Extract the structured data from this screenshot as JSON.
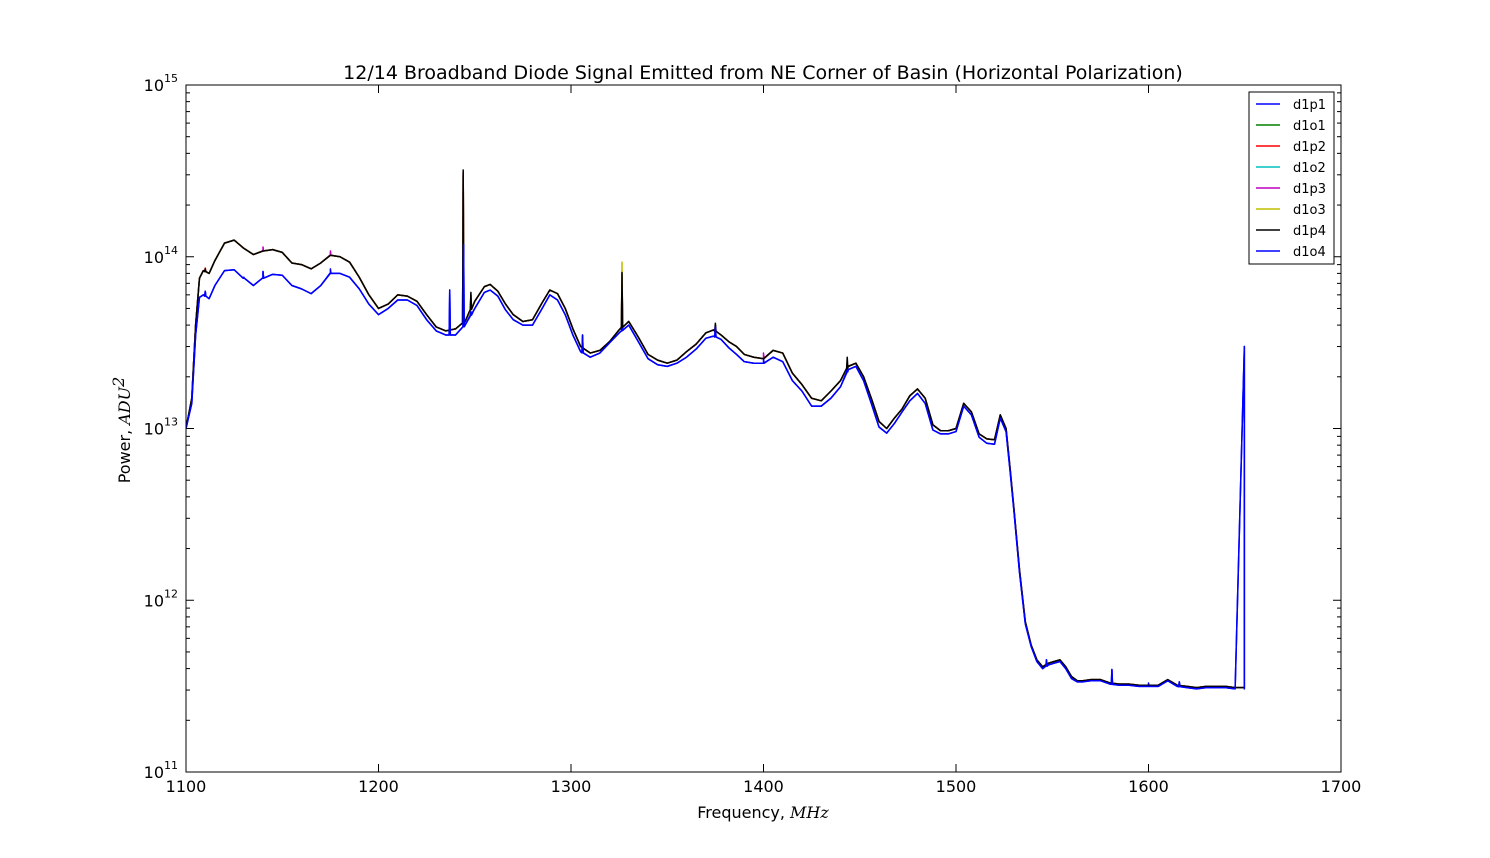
{
  "chart_data": {
    "type": "line",
    "title": "12/14 Broadband Diode Signal Emitted from NE Corner of Basin (Horizontal Polarization)",
    "xlabel": "Frequency, ",
    "xlabel_math": "MHz",
    "ylabel": "Power, ",
    "ylabel_math": "ADU",
    "ylabel_math_exponent": "2",
    "xlim": [
      1100,
      1700
    ],
    "ylim": [
      100000000000.0,
      1000000000000000.0
    ],
    "yscale": "log",
    "x_ticks": [
      1100,
      1200,
      1300,
      1400,
      1500,
      1600,
      1700
    ],
    "x_tick_labels": [
      "1100",
      "1200",
      "1300",
      "1400",
      "1500",
      "1600",
      "1700"
    ],
    "y_ticks": [
      100000000000.0,
      1000000000000.0,
      10000000000000.0,
      100000000000000.0,
      1000000000000000.0
    ],
    "y_tick_labels": [
      {
        "base": "10",
        "exp": "11"
      },
      {
        "base": "10",
        "exp": "12"
      },
      {
        "base": "10",
        "exp": "13"
      },
      {
        "base": "10",
        "exp": "14"
      },
      {
        "base": "10",
        "exp": "15"
      }
    ],
    "grid": false,
    "legend_position": "upper-right",
    "colors": {
      "d1p1": "#0000ff",
      "d1o1": "#008000",
      "d1p2": "#ff0000",
      "d1o2": "#00bfbf",
      "d1p3": "#bf00bf",
      "d1o3": "#bfbf00",
      "d1p4": "#000000",
      "d1o4": "#0000ff"
    },
    "upper_envelope": {
      "x": [
        1100,
        1103,
        1105,
        1107,
        1109,
        1112,
        1115,
        1120,
        1125,
        1130,
        1135,
        1140,
        1145,
        1150,
        1155,
        1160,
        1165,
        1170,
        1175,
        1180,
        1185,
        1190,
        1195,
        1200,
        1205,
        1210,
        1215,
        1220,
        1225,
        1230,
        1235,
        1240,
        1245,
        1250,
        1255,
        1258,
        1262,
        1266,
        1270,
        1275,
        1280,
        1285,
        1289,
        1293,
        1297,
        1301,
        1305,
        1310,
        1315,
        1320,
        1325,
        1330,
        1335,
        1340,
        1345,
        1350,
        1355,
        1360,
        1365,
        1370,
        1374,
        1378,
        1382,
        1386,
        1390,
        1395,
        1400,
        1405,
        1410,
        1415,
        1420,
        1425,
        1430,
        1435,
        1440,
        1444,
        1448,
        1452,
        1456,
        1460,
        1464,
        1468,
        1472,
        1476,
        1480,
        1484,
        1488,
        1492,
        1496,
        1500,
        1504,
        1508,
        1512,
        1516,
        1520,
        1523,
        1526,
        1528,
        1530,
        1533,
        1536,
        1539,
        1542,
        1545,
        1548,
        1551,
        1554,
        1557,
        1560,
        1563,
        1566,
        1570,
        1575,
        1580,
        1585,
        1590,
        1595,
        1600,
        1605,
        1610,
        1615,
        1620,
        1625,
        1630,
        1635,
        1640,
        1645,
        1649.8
      ],
      "y": [
        10000000000000.0,
        15000000000000.0,
        40000000000000.0,
        75000000000000.0,
        83000000000000.0,
        80000000000000.0,
        95000000000000.0,
        120000000000000.0,
        125000000000000.0,
        112000000000000.0,
        103000000000000.0,
        108000000000000.0,
        110000000000000.0,
        106000000000000.0,
        92000000000000.0,
        90000000000000.0,
        85000000000000.0,
        92000000000000.0,
        102000000000000.0,
        100000000000000.0,
        93000000000000.0,
        76000000000000.0,
        60000000000000.0,
        50000000000000.0,
        53000000000000.0,
        60000000000000.0,
        59000000000000.0,
        55000000000000.0,
        46000000000000.0,
        39000000000000.0,
        37000000000000.0,
        38000000000000.0,
        42000000000000.0,
        55000000000000.0,
        67000000000000.0,
        69000000000000.0,
        63000000000000.0,
        53000000000000.0,
        46000000000000.0,
        42000000000000.0,
        43000000000000.0,
        54000000000000.0,
        64000000000000.0,
        61000000000000.0,
        50000000000000.0,
        38000000000000.0,
        30000000000000.0,
        27500000000000.0,
        28500000000000.0,
        32000000000000.0,
        37500000000000.0,
        42000000000000.0,
        34000000000000.0,
        27000000000000.0,
        25000000000000.0,
        24000000000000.0,
        25000000000000.0,
        28000000000000.0,
        31000000000000.0,
        36000000000000.0,
        37500000000000.0,
        35000000000000.0,
        32000000000000.0,
        30000000000000.0,
        27000000000000.0,
        26000000000000.0,
        25500000000000.0,
        28500000000000.0,
        27500000000000.0,
        21000000000000.0,
        18000000000000.0,
        15000000000000.0,
        14500000000000.0,
        16500000000000.0,
        19000000000000.0,
        23000000000000.0,
        24000000000000.0,
        20000000000000.0,
        15000000000000.0,
        11000000000000.0,
        10000000000000.0,
        11500000000000.0,
        13000000000000.0,
        15500000000000.0,
        17000000000000.0,
        15000000000000.0,
        10500000000000.0,
        9700000000000.0,
        9700000000000.0,
        10000000000000.0,
        14000000000000.0,
        12500000000000.0,
        9300000000000.0,
        8700000000000.0,
        8600000000000.0,
        12000000000000.0,
        10000000000000.0,
        6000000000000.0,
        3500000000000.0,
        1500000000000.0,
        750000000000.0,
        550000000000.0,
        450000000000.0,
        410000000000.0,
        430000000000.0,
        440000000000.0,
        450000000000.0,
        410000000000.0,
        360000000000.0,
        340000000000.0,
        340000000000.0,
        345000000000.0,
        345000000000.0,
        330000000000.0,
        325000000000.0,
        325000000000.0,
        320000000000.0,
        320000000000.0,
        320000000000.0,
        345000000000.0,
        320000000000.0,
        315000000000.0,
        310000000000.0,
        315000000000.0,
        315000000000.0,
        315000000000.0,
        310000000000.0,
        310000000000.0
      ]
    },
    "lower_envelope": {
      "x": [
        1100,
        1103,
        1105,
        1107,
        1109,
        1112,
        1115,
        1120,
        1125,
        1130,
        1135,
        1140,
        1145,
        1150,
        1155,
        1160,
        1165,
        1170,
        1175,
        1180,
        1185,
        1190,
        1195,
        1200,
        1205,
        1210,
        1215,
        1220,
        1225,
        1230,
        1235,
        1240,
        1245,
        1250,
        1255,
        1258,
        1262,
        1266,
        1270,
        1275,
        1280,
        1285,
        1289,
        1293,
        1297,
        1301,
        1305,
        1310,
        1315,
        1320,
        1325,
        1330,
        1335,
        1340,
        1345,
        1350,
        1355,
        1360,
        1365,
        1370,
        1374,
        1378,
        1382,
        1386,
        1390,
        1395,
        1400,
        1405,
        1410,
        1415,
        1420,
        1425,
        1430,
        1435,
        1440,
        1444,
        1448,
        1452,
        1456,
        1460,
        1464,
        1468,
        1472,
        1476,
        1480,
        1484,
        1488,
        1492,
        1496,
        1500,
        1504,
        1508,
        1512,
        1516,
        1520,
        1523,
        1526,
        1528,
        1530,
        1533,
        1536,
        1539,
        1542,
        1545,
        1548,
        1551,
        1554,
        1557,
        1560,
        1563,
        1566,
        1570,
        1575,
        1580,
        1585,
        1590,
        1595,
        1600,
        1605,
        1610,
        1615,
        1620,
        1625,
        1630,
        1635,
        1640,
        1645,
        1649.8
      ],
      "y": [
        10000000000000.0,
        14000000000000.0,
        35000000000000.0,
        58000000000000.0,
        60000000000000.0,
        57000000000000.0,
        68000000000000.0,
        83000000000000.0,
        84000000000000.0,
        75000000000000.0,
        68000000000000.0,
        75000000000000.0,
        79000000000000.0,
        78000000000000.0,
        68000000000000.0,
        65000000000000.0,
        61000000000000.0,
        68000000000000.0,
        80000000000000.0,
        80000000000000.0,
        76000000000000.0,
        65000000000000.0,
        53000000000000.0,
        46000000000000.0,
        50000000000000.0,
        56000000000000.0,
        56000000000000.0,
        52000000000000.0,
        43000000000000.0,
        37000000000000.0,
        35000000000000.0,
        35000000000000.0,
        40000000000000.0,
        50000000000000.0,
        62000000000000.0,
        64000000000000.0,
        59000000000000.0,
        49000000000000.0,
        43000000000000.0,
        40000000000000.0,
        40000000000000.0,
        50000000000000.0,
        60000000000000.0,
        56000000000000.0,
        46000000000000.0,
        35000000000000.0,
        28000000000000.0,
        26000000000000.0,
        27500000000000.0,
        31500000000000.0,
        36000000000000.0,
        40000000000000.0,
        32000000000000.0,
        25500000000000.0,
        23500000000000.0,
        23000000000000.0,
        24000000000000.0,
        26000000000000.0,
        29000000000000.0,
        33500000000000.0,
        34500000000000.0,
        33000000000000.0,
        29500000000000.0,
        27000000000000.0,
        24500000000000.0,
        24000000000000.0,
        24000000000000.0,
        26000000000000.0,
        24500000000000.0,
        19000000000000.0,
        16500000000000.0,
        13500000000000.0,
        13500000000000.0,
        15000000000000.0,
        17500000000000.0,
        22000000000000.0,
        23000000000000.0,
        19000000000000.0,
        14000000000000.0,
        10200000000000.0,
        9400000000000.0,
        10700000000000.0,
        12500000000000.0,
        14500000000000.0,
        16000000000000.0,
        14000000000000.0,
        9800000000000.0,
        9300000000000.0,
        9300000000000.0,
        9600000000000.0,
        13500000000000.0,
        12000000000000.0,
        8900000000000.0,
        8200000000000.0,
        8100000000000.0,
        11500000000000.0,
        9600000000000.0,
        5800000000000.0,
        3400000000000.0,
        1450000000000.0,
        730000000000.0,
        540000000000.0,
        440000000000.0,
        400000000000.0,
        420000000000.0,
        430000000000.0,
        440000000000.0,
        400000000000.0,
        350000000000.0,
        335000000000.0,
        335000000000.0,
        340000000000.0,
        340000000000.0,
        325000000000.0,
        320000000000.0,
        320000000000.0,
        315000000000.0,
        315000000000.0,
        315000000000.0,
        340000000000.0,
        315000000000.0,
        310000000000.0,
        305000000000.0,
        310000000000.0,
        310000000000.0,
        310000000000.0,
        305000000000.0,
        305000000000.0
      ]
    },
    "series": [
      {
        "name": "d1p1",
        "envelope": "lower",
        "color_key": "d1p1",
        "spikes": [
          [
            1110,
            63000000000000.0
          ],
          [
            1130,
            76000000000000.0
          ],
          [
            1140,
            82000000000000.0
          ],
          [
            1175,
            85000000000000.0
          ],
          [
            1237,
            64000000000000.0
          ],
          [
            1244.2,
            118000000000000.0
          ],
          [
            1248,
            48000000000000.0
          ],
          [
            1306,
            35000000000000.0
          ],
          [
            1326.5,
            50000000000000.0
          ],
          [
            1375,
            39000000000000.0
          ],
          [
            1400,
            25500000000000.0
          ],
          [
            1443.5,
            24000000000000.0
          ],
          [
            1547,
            450000000000.0
          ],
          [
            1581,
            395000000000.0
          ],
          [
            1600,
            330000000000.0
          ],
          [
            1616,
            335000000000.0
          ],
          [
            1650,
            30000000000000.0
          ]
        ]
      },
      {
        "name": "d1o1",
        "envelope": "upper",
        "color_key": "d1o1",
        "spikes": [
          [
            1244,
            300000000000000.0
          ],
          [
            1326.5,
            75000000000000.0
          ]
        ]
      },
      {
        "name": "d1p2",
        "envelope": "upper",
        "color_key": "d1p2",
        "spikes": [
          [
            1110,
            86000000000000.0
          ],
          [
            1244,
            310000000000000.0
          ],
          [
            1248,
            60000000000000.0
          ],
          [
            1326.5,
            78000000000000.0
          ],
          [
            1375,
            40000000000000.0
          ]
        ]
      },
      {
        "name": "d1o2",
        "envelope": "upper",
        "color_key": "d1o2",
        "spikes": [
          [
            1244,
            300000000000000.0
          ],
          [
            1326.5,
            72000000000000.0
          ]
        ]
      },
      {
        "name": "d1p3",
        "envelope": "upper",
        "color_key": "d1p3",
        "spikes": [
          [
            1140,
            114000000000000.0
          ],
          [
            1175,
            108000000000000.0
          ],
          [
            1244,
            310000000000000.0
          ],
          [
            1326.5,
            80000000000000.0
          ],
          [
            1400,
            27500000000000.0
          ]
        ]
      },
      {
        "name": "d1o3",
        "envelope": "upper",
        "color_key": "d1o3",
        "spikes": [
          [
            1244,
            300000000000000.0
          ],
          [
            1326.5,
            93000000000000.0
          ]
        ]
      },
      {
        "name": "d1p4",
        "envelope": "upper",
        "color_key": "d1p4",
        "spikes": [
          [
            1110,
            85000000000000.0
          ],
          [
            1244,
            320000000000000.0
          ],
          [
            1248,
            62000000000000.0
          ],
          [
            1326.5,
            81000000000000.0
          ],
          [
            1375,
            41000000000000.0
          ],
          [
            1443.5,
            26000000000000.0
          ]
        ]
      },
      {
        "name": "d1o4",
        "envelope": "lower",
        "color_key": "d1o4",
        "spikes": [
          [
            1110,
            63000000000000.0
          ],
          [
            1130,
            76000000000000.0
          ],
          [
            1140,
            82000000000000.0
          ],
          [
            1237,
            64000000000000.0
          ],
          [
            1244.2,
            118000000000000.0
          ],
          [
            1306,
            35000000000000.0
          ],
          [
            1375,
            39000000000000.0
          ],
          [
            1547,
            450000000000.0
          ],
          [
            1581,
            395000000000.0
          ],
          [
            1616,
            335000000000.0
          ],
          [
            1650,
            30000000000000.0
          ]
        ]
      }
    ]
  }
}
